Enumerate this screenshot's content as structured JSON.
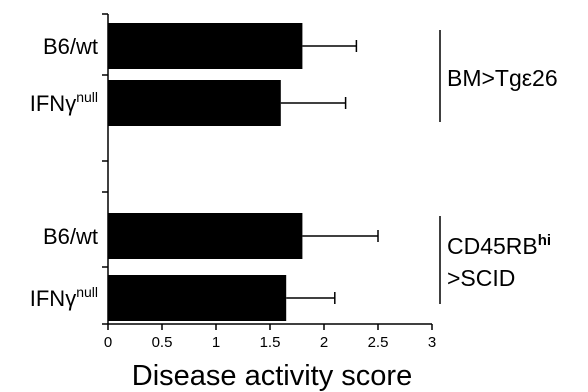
{
  "chart_data": {
    "type": "bar",
    "orientation": "horizontal",
    "categories": [
      "B6/wt",
      "IFNγnull",
      "B6/wt",
      "IFNγnull"
    ],
    "category_labels": [
      {
        "base": "B6/wt",
        "sup": ""
      },
      {
        "base": "IFNγ",
        "sup": "null"
      },
      {
        "base": "B6/wt",
        "sup": ""
      },
      {
        "base": "IFNγ",
        "sup": "null"
      }
    ],
    "values": [
      1.8,
      1.6,
      1.8,
      1.65
    ],
    "error_plus": [
      0.5,
      0.6,
      0.7,
      0.45
    ],
    "xlabel": "Disease activity score",
    "xlim": [
      0,
      3
    ],
    "xticks": [
      "0",
      "0.5",
      "1",
      "1.5",
      "2",
      "2.5",
      "3"
    ],
    "groups": [
      {
        "lines": [
          {
            "base": "BM>Tgε26",
            "sup": ""
          }
        ]
      },
      {
        "lines": [
          {
            "base": "CD45RB",
            "sup": "hi"
          },
          {
            "base": ">SCID",
            "sup": ""
          }
        ]
      }
    ],
    "bar_color": "#000000",
    "grid": false,
    "legend": "none"
  }
}
